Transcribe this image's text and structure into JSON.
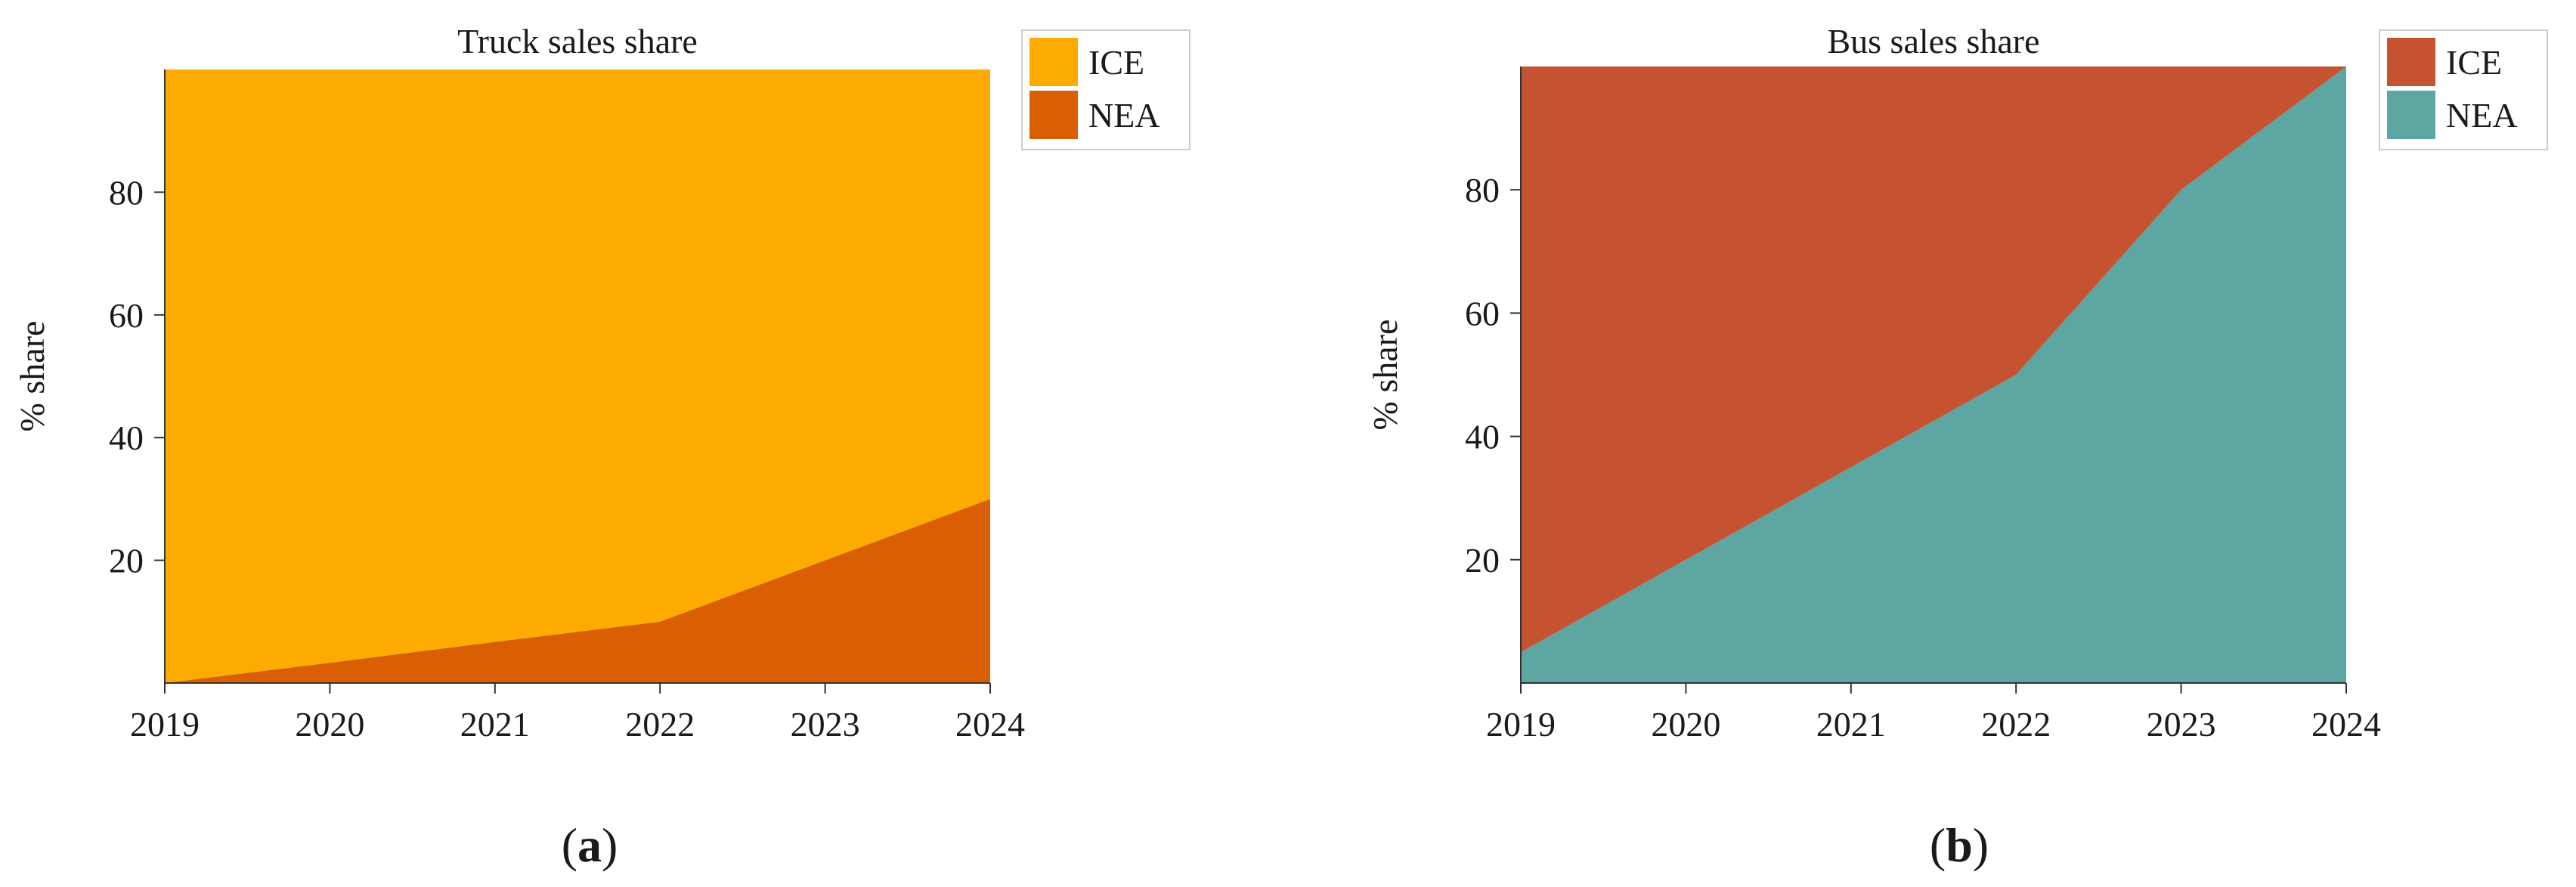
{
  "chart_data": [
    {
      "type": "area",
      "stacked": true,
      "title": "Truck sales share",
      "xlabel": "",
      "ylabel": "% share",
      "x": [
        2019,
        2020,
        2021,
        2022,
        2023,
        2024
      ],
      "x_tick_labels": [
        "2019",
        "2020",
        "2021",
        "2022",
        "2023",
        "2024"
      ],
      "xlim": [
        2019,
        2024
      ],
      "ylim": [
        0,
        100
      ],
      "y_ticks": [
        20,
        40,
        60,
        80
      ],
      "y_tick_labels": [
        "20",
        "40",
        "60",
        "80"
      ],
      "grid": false,
      "legend_position": "top-right, outside",
      "series": [
        {
          "name": "NEA",
          "color": "#d95f02",
          "values": [
            0,
            3.3,
            6.7,
            10,
            20,
            30
          ]
        },
        {
          "name": "ICE",
          "color": "#fdab00",
          "values": [
            100,
            96.7,
            93.3,
            90,
            80,
            70
          ]
        }
      ],
      "legend": [
        {
          "name": "ICE",
          "color": "#fdab00"
        },
        {
          "name": "NEA",
          "color": "#d95f02"
        }
      ],
      "panel_label": {
        "open": "(",
        "letter": "a",
        "close": ")"
      }
    },
    {
      "type": "area",
      "stacked": true,
      "title": "Bus sales share",
      "xlabel": "",
      "ylabel": "% share",
      "x": [
        2019,
        2020,
        2021,
        2022,
        2023,
        2024
      ],
      "x_tick_labels": [
        "2019",
        "2020",
        "2021",
        "2022",
        "2023",
        "2024"
      ],
      "xlim": [
        2019,
        2024
      ],
      "ylim": [
        0,
        100
      ],
      "y_ticks": [
        20,
        40,
        60,
        80
      ],
      "y_tick_labels": [
        "20",
        "40",
        "60",
        "80"
      ],
      "grid": false,
      "legend_position": "top-right, outside",
      "series": [
        {
          "name": "NEA",
          "color": "#5ea6a1",
          "values": [
            5,
            20,
            35,
            50,
            80,
            100
          ]
        },
        {
          "name": "ICE",
          "color": "#c55332",
          "values": [
            95,
            80,
            65,
            50,
            20,
            0
          ]
        }
      ],
      "legend": [
        {
          "name": "ICE",
          "color": "#c55332"
        },
        {
          "name": "NEA",
          "color": "#5ea6a1"
        }
      ],
      "panel_label": {
        "open": "(",
        "letter": "b",
        "close": ")"
      }
    }
  ]
}
